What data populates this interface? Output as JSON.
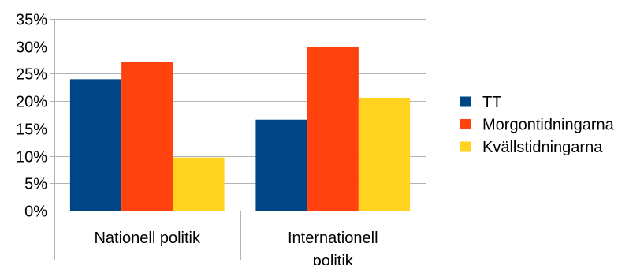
{
  "chart_data": {
    "type": "bar",
    "categories": [
      [
        "Nationell politik"
      ],
      [
        "Internationell",
        "politik"
      ]
    ],
    "series": [
      {
        "name": "TT",
        "color": "#004586",
        "values": [
          24,
          16.6
        ]
      },
      {
        "name": "Morgontidningarna",
        "color": "#ff420e",
        "values": [
          27.2,
          29.9
        ]
      },
      {
        "name": "Kvällstidningarna",
        "color": "#ffd320",
        "values": [
          9.7,
          20.6
        ]
      }
    ],
    "ylim": [
      0,
      35
    ],
    "yticks": [
      0,
      5,
      10,
      15,
      20,
      25,
      30,
      35
    ],
    "ytick_labels": [
      "0%",
      "5%",
      "10%",
      "15%",
      "20%",
      "25%",
      "30%",
      "35%"
    ],
    "grid": true,
    "legend_position": "right"
  }
}
